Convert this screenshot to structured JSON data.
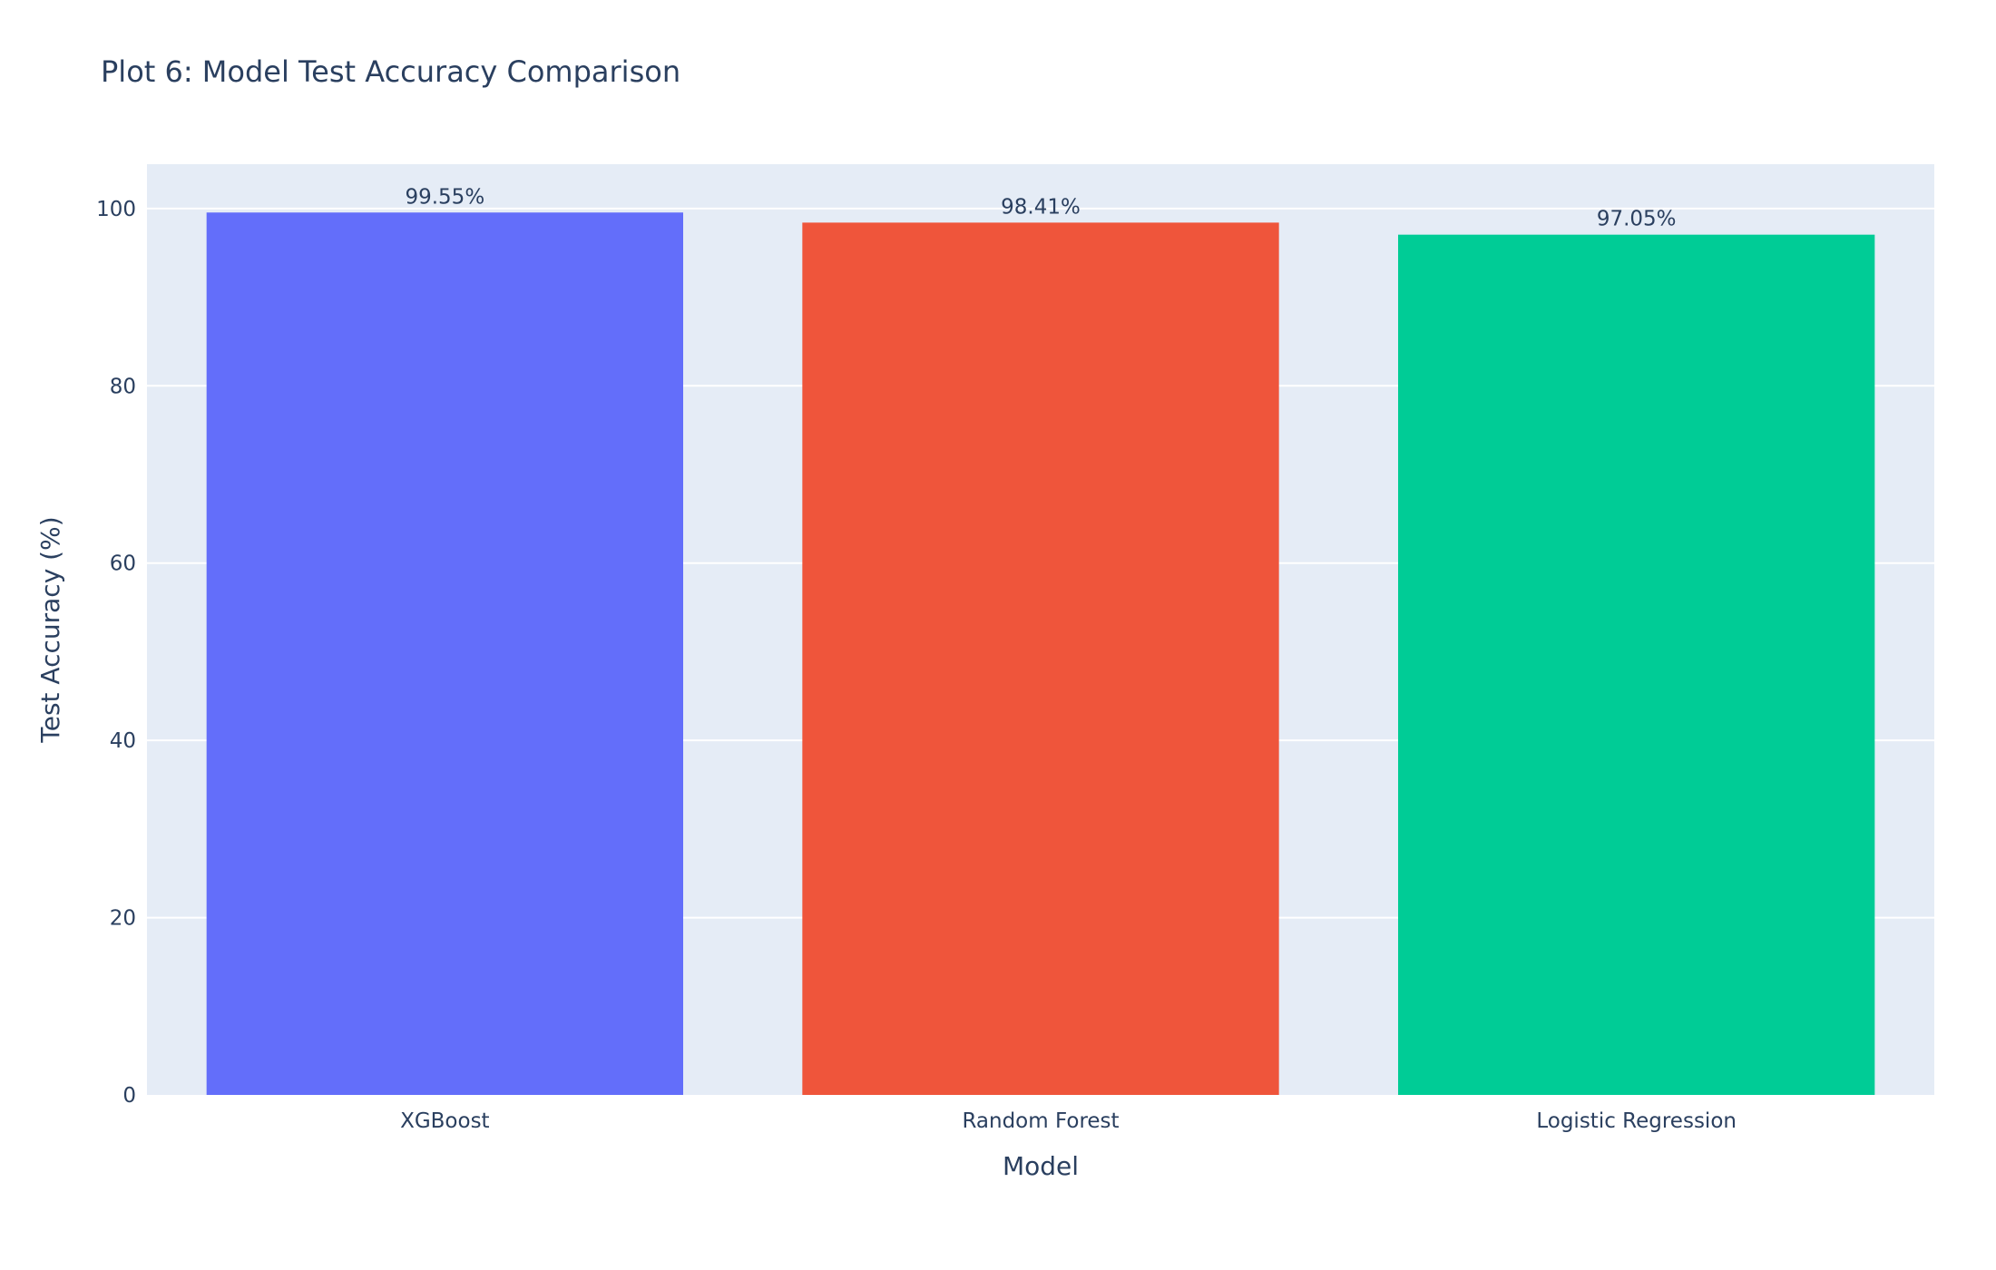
{
  "chart_data": {
    "type": "bar",
    "title": "Plot 6: Model Test Accuracy Comparison",
    "xlabel": "Model",
    "ylabel": "Test Accuracy (%)",
    "categories": [
      "XGBoost",
      "Random Forest",
      "Logistic Regression"
    ],
    "values": [
      99.55,
      98.41,
      97.05
    ],
    "data_labels": [
      "99.55%",
      "98.41%",
      "97.05%"
    ],
    "colors": [
      "#636efa",
      "#ef553b",
      "#00cc96"
    ],
    "ylim": [
      0,
      105
    ],
    "yticks": [
      0,
      20,
      40,
      60,
      80,
      100
    ],
    "ytick_labels": [
      "0",
      "20",
      "40",
      "60",
      "80",
      "100"
    ],
    "grid": true,
    "plot_background": "#e5ecf6",
    "text_color": "#2a3f5f"
  }
}
